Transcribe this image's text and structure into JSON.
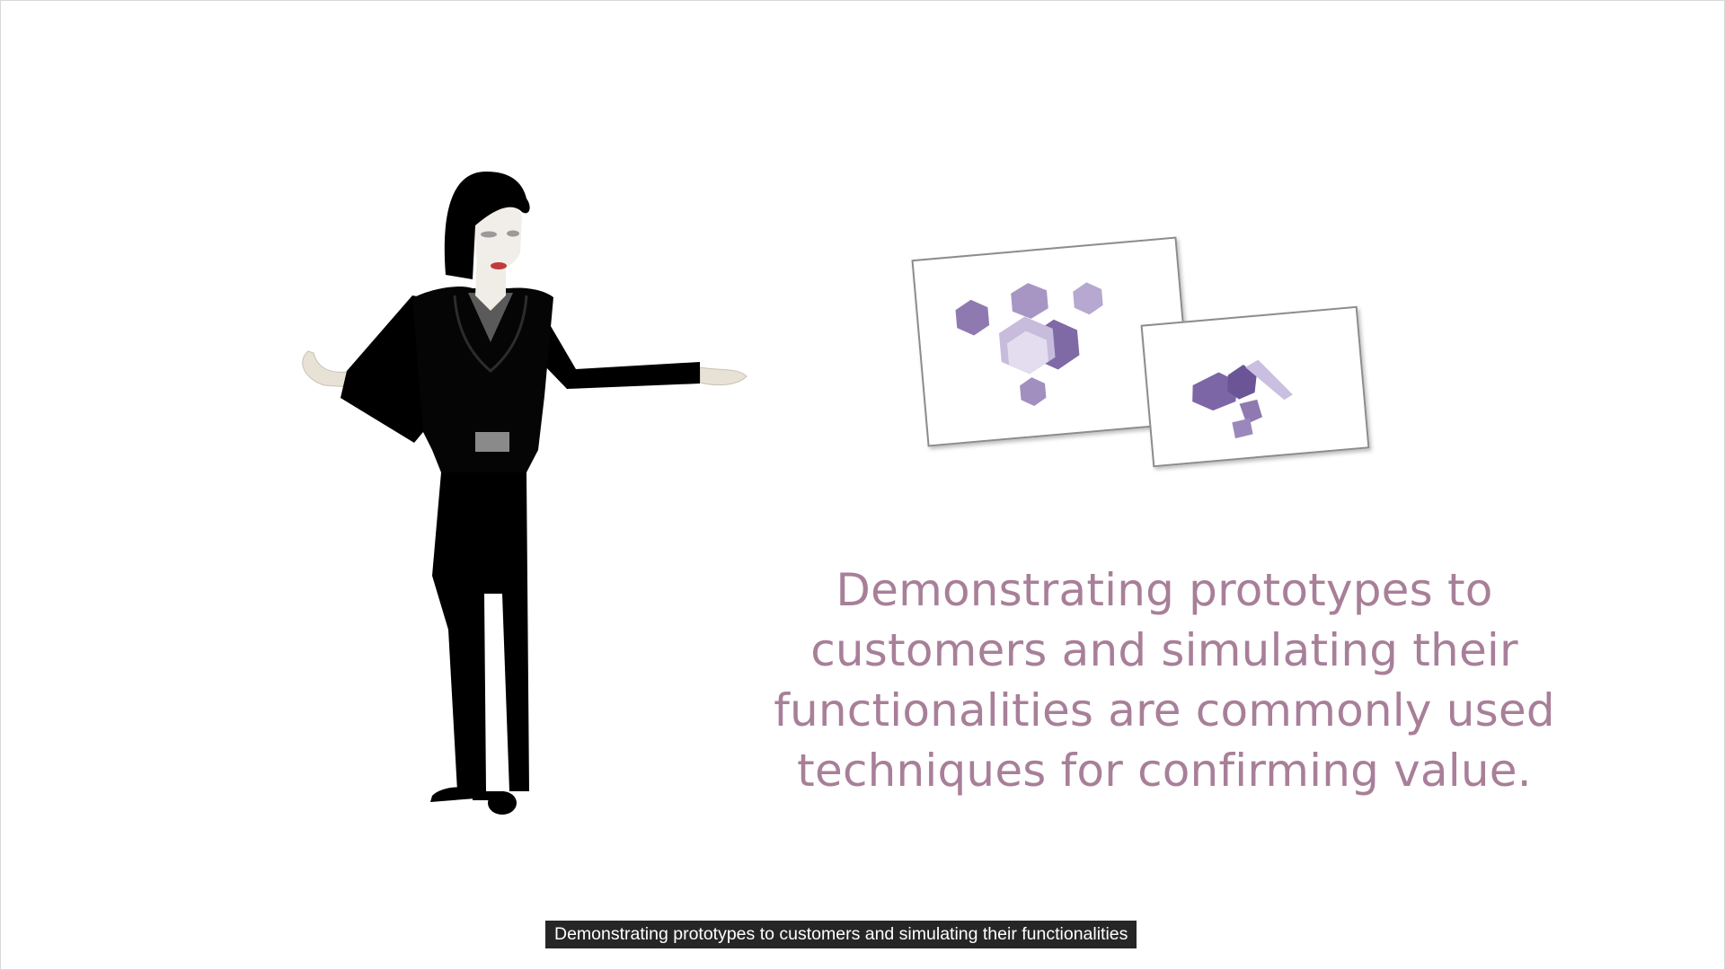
{
  "slide": {
    "statement": "Demonstrating prototypes to customers and simulating their functionalities are commonly used techniques for confirming value.",
    "figure_icon": "business-woman-presenter",
    "cards_icon": "prototype-cards"
  },
  "caption": {
    "text": "Demonstrating prototypes to customers and simulating their functionalities"
  },
  "colors": {
    "statement_text": "#a87f98",
    "shape_purple": "#8e7ab0",
    "caption_bg": "#262626",
    "caption_text": "#ffffff"
  }
}
